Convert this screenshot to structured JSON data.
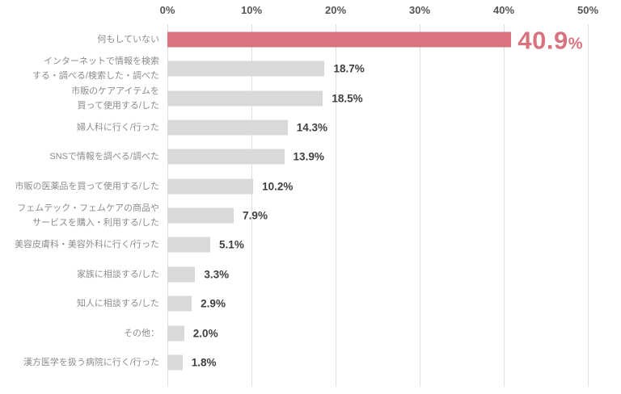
{
  "chart_data": {
    "type": "bar",
    "orientation": "horizontal",
    "title": "",
    "xlabel": "",
    "ylabel": "",
    "x_ticks": [
      "0%",
      "10%",
      "20%",
      "30%",
      "40%",
      "50%"
    ],
    "x_min": 0,
    "x_max": 50,
    "grid": true,
    "categories": [
      "何もしていない",
      "インターネットで情報を検索\nする・調べる/検索した・調べた",
      "市販のケアアイテムを\n買って使用する/した",
      "婦人科に行く/行った",
      "SNSで情報を調べる/調べた",
      "市販の医薬品を買って使用する/した",
      "フェムテック・フェムケアの商品や\nサービスを購入・利用する/した",
      "美容皮膚科・美容外科に行く/行った",
      "家族に相談する/した",
      "知人に相談する/した",
      "その他：",
      "漢方医学を扱う病院に行く/行った"
    ],
    "values": [
      40.9,
      18.7,
      18.5,
      14.3,
      13.9,
      10.2,
      7.9,
      5.1,
      3.3,
      2.9,
      2.0,
      1.8
    ],
    "value_labels": [
      "40.9",
      "18.7",
      "18.5",
      "14.3",
      "13.9",
      "10.2",
      "7.9",
      "5.1",
      "3.3",
      "2.9",
      "2.0",
      "1.8"
    ],
    "percent_sign": "%",
    "highlight_index": 0,
    "colors": {
      "highlight_bar": "#d8737f",
      "default_bar": "#d9d9d9",
      "highlight_value_text": "#d8737f",
      "value_text": "#404040",
      "category_text": "#8c8c8c",
      "axis_text": "#555555",
      "gridline": "#e0e0e0"
    }
  }
}
